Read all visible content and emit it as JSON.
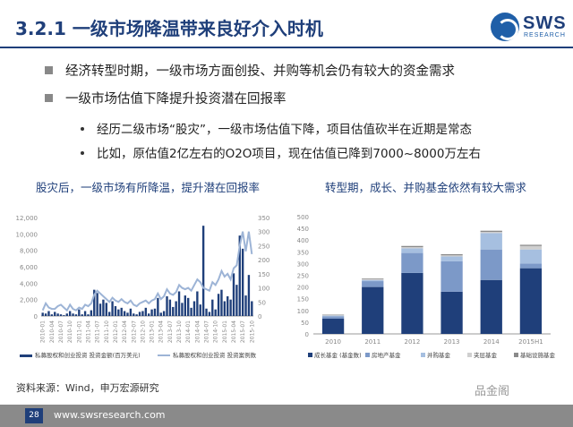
{
  "header": {
    "title": "3.2.1 一级市场降温带来良好介入时机"
  },
  "logo": {
    "brand": "SWS",
    "sub": "RESEARCH"
  },
  "bullets": [
    {
      "text": "经济转型时期，一级市场方面创投、并购等机会仍有较大的资金需求",
      "children": []
    },
    {
      "text": "一级市场估值下降提升投资潜在回报率",
      "children": [
        "经历二级市场“股灾”，一级市场估值下降，项目估值砍半在近期是常态",
        "比如，原估值2亿左右的O2O项目，现在估值已降到7000~8000万左右"
      ]
    }
  ],
  "charts": {
    "left_title": "股灾后，一级市场有所降温，提升潜在回报率",
    "right_title": "转型期，成长、并购基金依然有较大需求"
  },
  "chart_data": [
    {
      "type": "bar",
      "id": "left",
      "colors": {
        "bar": "#1f3f7a",
        "line": "#9db4d6"
      },
      "x": [
        "2010-01",
        "2010-02",
        "2010-03",
        "2010-04",
        "2010-05",
        "2010-06",
        "2010-07",
        "2010-08",
        "2010-09",
        "2010-10",
        "2010-11",
        "2010-12",
        "2011-01",
        "2011-02",
        "2011-03",
        "2011-04",
        "2011-05",
        "2011-06",
        "2011-07",
        "2011-08",
        "2011-09",
        "2011-10",
        "2011-11",
        "2011-12",
        "2012-01",
        "2012-02",
        "2012-03",
        "2012-04",
        "2012-05",
        "2012-06",
        "2012-07",
        "2012-08",
        "2012-09",
        "2012-10",
        "2012-11",
        "2012-12",
        "2013-01",
        "2013-02",
        "2013-03",
        "2013-04",
        "2013-05",
        "2013-06",
        "2013-07",
        "2013-08",
        "2013-09",
        "2013-10",
        "2013-11",
        "2013-12",
        "2014-01",
        "2014-02",
        "2014-03",
        "2014-04",
        "2014-05",
        "2014-06",
        "2014-07",
        "2014-08",
        "2014-09",
        "2014-10",
        "2014-11",
        "2014-12",
        "2015-01",
        "2015-02",
        "2015-03",
        "2015-04",
        "2015-05",
        "2015-06",
        "2015-07",
        "2015-08",
        "2015-09",
        "2015-10"
      ],
      "xticks": [
        "2010-01",
        "2010-04",
        "2010-07",
        "2010-10",
        "2011-01",
        "2011-04",
        "2011-07",
        "2011-10",
        "2012-01",
        "2012-04",
        "2012-07",
        "2012-10",
        "2013-01",
        "2013-04",
        "2013-07",
        "2013-10",
        "2014-01",
        "2014-04",
        "2014-07",
        "2014-10",
        "2015-01",
        "2015-04",
        "2015-07",
        "2015-10"
      ],
      "series": [
        {
          "name": "私募股权和创业投资 投资金额(百万美元)",
          "axis": "left",
          "values": [
            400,
            300,
            600,
            200,
            500,
            300,
            200,
            100,
            300,
            600,
            300,
            200,
            800,
            200,
            600,
            200,
            700,
            3200,
            2800,
            1500,
            2000,
            1600,
            500,
            1800,
            1200,
            800,
            1000,
            600,
            400,
            900,
            300,
            200,
            500,
            600,
            1000,
            300,
            800,
            900,
            2200,
            400,
            600,
            2400,
            2000,
            1100,
            1800,
            3000,
            1600,
            2500,
            2200,
            1000,
            1800,
            3000,
            1400,
            11000,
            900,
            500,
            2000,
            800,
            2700,
            3200,
            1800,
            2400,
            2000,
            5200,
            3800,
            9800,
            8200,
            2500,
            5000,
            1800
          ]
        },
        {
          "name": "私募股权和创业投资 投资案例数",
          "axis": "right",
          "values": [
            20,
            45,
            30,
            25,
            25,
            35,
            40,
            30,
            20,
            40,
            25,
            20,
            30,
            25,
            40,
            35,
            45,
            75,
            90,
            80,
            70,
            60,
            50,
            65,
            55,
            50,
            60,
            50,
            45,
            55,
            40,
            35,
            45,
            50,
            55,
            45,
            55,
            60,
            80,
            60,
            70,
            95,
            80,
            75,
            85,
            110,
            100,
            95,
            100,
            90,
            110,
            130,
            120,
            100,
            95,
            90,
            120,
            110,
            130,
            160,
            140,
            150,
            130,
            170,
            180,
            250,
            300,
            230,
            300,
            220
          ]
        }
      ],
      "yticks_left": [
        "0",
        "2,000",
        "4,000",
        "6,000",
        "8,000",
        "10,000",
        "12,000"
      ],
      "yticks_right": [
        "0",
        "50",
        "100",
        "150",
        "200",
        "250",
        "300",
        "350"
      ],
      "ylim_left": [
        0,
        12000
      ],
      "ylim_right": [
        0,
        350
      ]
    },
    {
      "type": "bar",
      "id": "right",
      "stacked": true,
      "categories": [
        "2010",
        "2011",
        "2012",
        "2013",
        "2014",
        "2015H1"
      ],
      "yticks": [
        "0",
        "50",
        "100",
        "150",
        "200",
        "250",
        "300",
        "350",
        "400",
        "450",
        "500"
      ],
      "ylim": [
        0,
        500
      ],
      "series": [
        {
          "name": "成长基金 (基金数)",
          "color": "#1f3f7a",
          "values": [
            65,
            200,
            260,
            180,
            230,
            280
          ]
        },
        {
          "name": "房地产基金",
          "color": "#7c99c8",
          "values": [
            10,
            25,
            85,
            130,
            130,
            20
          ]
        },
        {
          "name": "并购基金",
          "color": "#a6bfe0",
          "values": [
            3,
            5,
            20,
            20,
            70,
            60
          ]
        },
        {
          "name": "夹层基金",
          "color": "#cfcfcf",
          "values": [
            2,
            3,
            5,
            5,
            5,
            15
          ]
        },
        {
          "name": "基础设施基金",
          "color": "#8a8a8a",
          "values": [
            2,
            3,
            5,
            5,
            5,
            5
          ]
        }
      ]
    }
  ],
  "source": "资料来源：Wind，申万宏源研究",
  "watermark": "品金阁",
  "footer": {
    "page": "28",
    "url": "www.swsresearch.com"
  }
}
